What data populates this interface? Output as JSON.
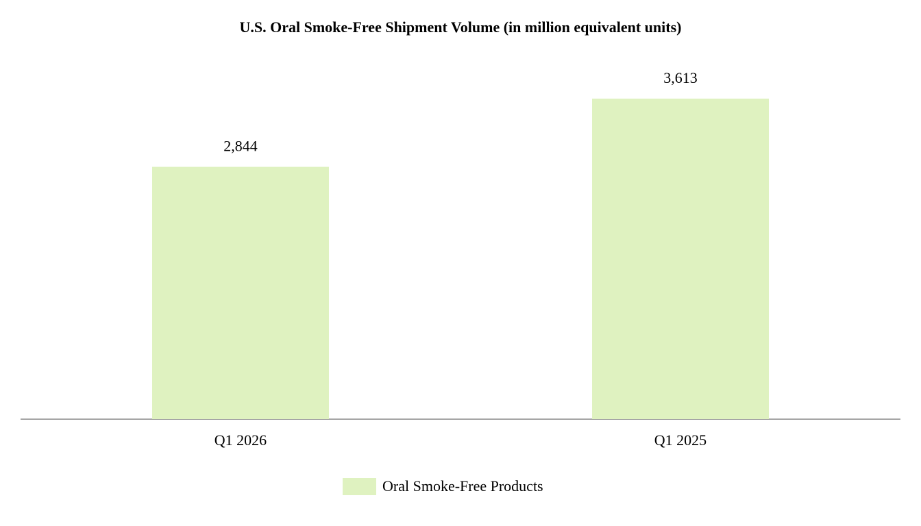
{
  "chart_data": {
    "type": "bar",
    "title": "U.S. Oral Smoke-Free Shipment Volume (in million equivalent units)",
    "categories": [
      "Q1 2026",
      "Q1 2025"
    ],
    "series": [
      {
        "name": "Oral Smoke-Free Products",
        "color": "#dff2c0",
        "values": [
          2844,
          3613
        ],
        "value_labels": [
          "2,844",
          "3,613"
        ]
      }
    ],
    "legend": "bottom"
  }
}
